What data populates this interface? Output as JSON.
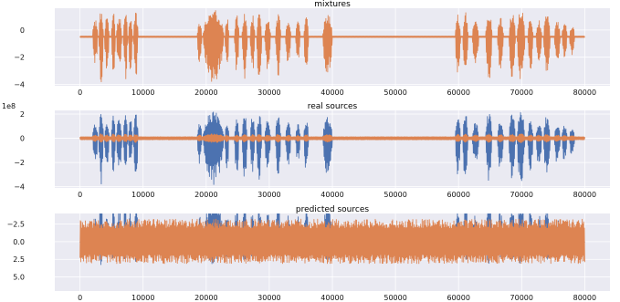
{
  "colors": {
    "background": "#eaeaf2",
    "blue": "#4c72b0",
    "orange": "#dd8452"
  },
  "chart_data": [
    {
      "type": "line",
      "title": "mixtures",
      "xlim": [
        -4000,
        84000
      ],
      "ylim": [
        -4.1,
        1.6
      ],
      "x_ticks": [
        0,
        10000,
        20000,
        30000,
        40000,
        50000,
        60000,
        70000,
        80000
      ],
      "x_tick_labels": [
        "0",
        "10000",
        "20000",
        "30000",
        "40000",
        "50000",
        "60000",
        "70000",
        "80000"
      ],
      "y_ticks": [
        0,
        -2,
        -4
      ],
      "y_tick_labels": [
        "0",
        "−2",
        "−4"
      ],
      "axis_offset": "",
      "grid": true,
      "series": [
        {
          "color": "orange",
          "baseline": -0.5,
          "envelope": "speech",
          "amp_up": 2.0,
          "amp_down": 3.4,
          "noise": 0.05
        }
      ]
    },
    {
      "type": "line",
      "title": "real sources",
      "xlim": [
        -4000,
        84000
      ],
      "ylim": [
        -4.1,
        2.3
      ],
      "x_ticks": [
        0,
        10000,
        20000,
        30000,
        40000,
        50000,
        60000,
        70000,
        80000
      ],
      "x_tick_labels": [
        "0",
        "10000",
        "20000",
        "30000",
        "40000",
        "50000",
        "60000",
        "70000",
        "80000"
      ],
      "y_ticks": [
        2,
        0,
        -2,
        -4
      ],
      "y_tick_labels": [
        "2",
        "0",
        "−2",
        "−4"
      ],
      "axis_offset": "1e8",
      "grid": true,
      "series": [
        {
          "color": "blue",
          "baseline": 0,
          "envelope": "speech",
          "amp_up": 2.2,
          "amp_down": 3.8,
          "noise": 0.05
        },
        {
          "color": "orange",
          "baseline": 0,
          "envelope": "speech-soft",
          "amp_up": 0.3,
          "amp_down": 0.3,
          "noise": 0.08
        }
      ]
    },
    {
      "type": "line",
      "title": "predicted sources",
      "xlim": [
        -4000,
        84000
      ],
      "ylim": [
        7.0,
        -4.0
      ],
      "x_ticks": [
        0,
        10000,
        20000,
        30000,
        40000,
        50000,
        60000,
        70000,
        80000
      ],
      "x_tick_labels": [
        "0",
        "10000",
        "20000",
        "30000",
        "40000",
        "50000",
        "60000",
        "70000",
        "80000"
      ],
      "y_ticks": [
        -2.5,
        0,
        2.5,
        5
      ],
      "y_tick_labels": [
        "−2.5",
        "0.0",
        "2.5",
        "5.0"
      ],
      "axis_offset": "",
      "grid": true,
      "series": [
        {
          "color": "blue",
          "baseline": 0,
          "envelope": "speech",
          "amp_up": 3.2,
          "amp_down": 6.5,
          "noise": 0.1
        },
        {
          "color": "orange",
          "baseline": 0,
          "envelope": "flat",
          "amp_up": 2.9,
          "amp_down": 3.0,
          "noise": 0.2
        }
      ]
    }
  ]
}
